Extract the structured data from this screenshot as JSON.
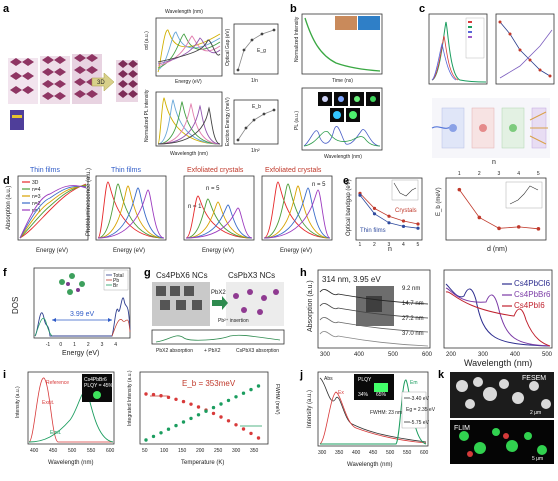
{
  "panels": {
    "a": {
      "letter": "a",
      "arrow_label": "3D",
      "axis": {
        "top_x": "Wavelength (nm)",
        "bottom_x": "Wavelength (nm)",
        "x_mid": "Energy (eV)",
        "y1": "αd (a.u.)",
        "y2": "Normalized PL intensity"
      },
      "right_top": {
        "xlabel": "1/n",
        "ylabel": "Optical Gap (eV)",
        "legend": "E_g"
      },
      "right_bottom": {
        "xlabel": "1/n²",
        "ylabel": "Exciton Energy (meV)",
        "legend": "E_b"
      },
      "colors": [
        "#d1b000",
        "#6aa8d9",
        "#44a043",
        "#e27dae",
        "#9357b0",
        "#444444"
      ]
    },
    "b": {
      "letter": "b",
      "top": {
        "xlabel": "Time (ns)",
        "ylabel": "Normalized Intensity"
      },
      "bottom": {
        "xlabel": "Wavelength (nm)",
        "ylabel": "PL (a.u.)"
      }
    },
    "c": {
      "letter": "c"
    },
    "d": {
      "letter": "d",
      "subtitles": [
        "Thin films",
        "Thin films",
        "Exfoliated crystals",
        "Exfoliated crystals"
      ],
      "ylabel_left": "Absorption (a.u.)",
      "ylabel_pl": "Photoluminescence (a.u.)",
      "xlabel": "Energy (eV)",
      "legend": [
        {
          "label": "3D",
          "color": "#e6282a"
        },
        {
          "label": "n=4",
          "color": "#4f9d3a"
        },
        {
          "label": "n=3",
          "color": "#d8a200"
        },
        {
          "label": "n=2",
          "color": "#3b6cc9"
        },
        {
          "label": "n=1",
          "color": "#9c3bbf"
        }
      ],
      "annotations": {
        "n5": "n = 5",
        "n1": "n = 1"
      }
    },
    "e": {
      "letter": "e",
      "ylabel_left": "Optical bandgap (eV)",
      "ylabel_right": "E_b (meV)",
      "xlabel_left": "n",
      "xlabel_right": "d (nm)",
      "top_n_label": "n",
      "legend": [
        "Crystals",
        "Thin films"
      ],
      "left_x": [
        1,
        2,
        3,
        4,
        5
      ],
      "left_series": [
        {
          "values": [
            2.41,
            2.16,
            2.03,
            1.95,
            1.9
          ],
          "color": "#c0392b"
        },
        {
          "values": [
            2.38,
            2.07,
            1.92,
            1.86,
            1.83
          ],
          "color": "#2e4a9e"
        }
      ],
      "right_x": [
        0.94,
        1.6,
        2.25,
        2.9,
        3.55
      ],
      "right_values": [
        380,
        265,
        220,
        226,
        218
      ],
      "top_n_values": [
        1,
        2,
        3,
        4,
        5
      ]
    },
    "f": {
      "letter": "f",
      "ylabel": "DOS",
      "xlabel": "Energy (eV)",
      "legend": [
        "Total",
        "Pb",
        "Br"
      ],
      "gap_label": "3.99 eV",
      "xlim": [
        -2,
        5
      ],
      "ticks": [
        "-1",
        "0",
        "1",
        "2",
        "3",
        "4"
      ]
    },
    "g": {
      "letter": "g",
      "title_left": "Cs4PbX6 NCs",
      "title_right": "CsPbX3 NCs",
      "arrow": "PbX2",
      "bottom_left": "PbX2 absorption",
      "bottom_mid": "+ PbX2",
      "bottom_right": "CsPbX3 absorption",
      "insert": "Pb²⁺ insertion"
    },
    "h": {
      "letter": "h",
      "ylabel": "Absorption (a.u.)",
      "xlabel": "Wavelength (nm)",
      "annot": "314 nm, 3.95 eV",
      "sizes": [
        "9.2 nm",
        "14.7 nm",
        "27.2 nm",
        "37.0 nm"
      ],
      "right_legend": [
        "Cs4PbCl6",
        "Cs4PbBr6",
        "Cs4PbI6"
      ],
      "right_colors": [
        "#2d2d8f",
        "#7b3aa6",
        "#c0212e"
      ],
      "xticks_left": [
        "300",
        "400",
        "500",
        "600"
      ],
      "xticks_right": [
        "200",
        "300",
        "400",
        "500"
      ]
    },
    "i": {
      "letter": "i",
      "ylabel": "Intensity (a.u.)",
      "xlabel_left": "Wavelength (nm)",
      "xlabel_right": "Temperature (K)",
      "left_legend": [
        "Reference",
        "Cs4PbBr6"
      ],
      "excit": "Excit.",
      "emit": "Emit.",
      "inset_text": "FLIM Cs4PbBr6\nPLQY = 45%",
      "plqy": "PLQY = 45%",
      "ylabel_right_left": "Integrated Intensity (a.u.)",
      "ylabel_right_right": "FWHM (meV)",
      "eb_text": "E_b = 353meV",
      "xticks_left": [
        "400",
        "450",
        "500",
        "550",
        "600"
      ],
      "xticks_right": [
        "50",
        "100",
        "150",
        "200",
        "250",
        "300",
        "350"
      ]
    },
    "j": {
      "letter": "j",
      "ylabel": "Intensity (a.u.)",
      "xlabel": "Wavelength (nm)",
      "peak_labels": [
        "Abs",
        "Ex",
        "Em"
      ],
      "plqy_label": "PLQY",
      "plqy_vals": [
        "34%",
        "65%"
      ],
      "fwhm": "FWHM: 23 nm",
      "band": [
        "-3.40 eV",
        "Eg = 2.35 eV",
        "-5.75 eV"
      ],
      "xticks": [
        "300",
        "350",
        "400",
        "450",
        "500",
        "550",
        "600"
      ]
    },
    "k": {
      "letter": "k",
      "label_top": "FESEM",
      "label_bottom": "FLIM",
      "scale_top": "2 μm",
      "scale_bottom": "5 μm"
    }
  }
}
